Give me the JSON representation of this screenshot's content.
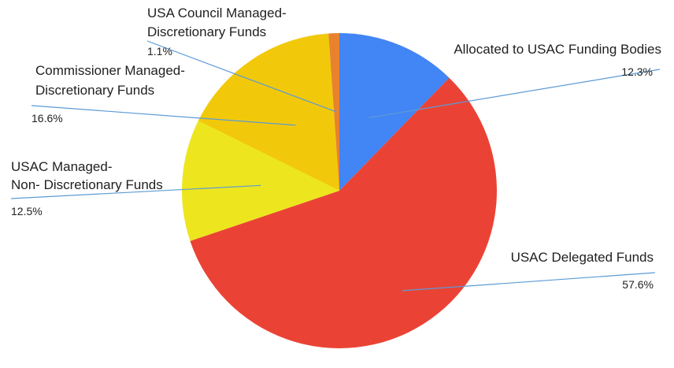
{
  "chart_data": {
    "type": "pie",
    "title": "",
    "start_angle_deg": 0,
    "direction": "clockwise",
    "slices": [
      {
        "label": "Allocated to USAC Funding Bodies",
        "value": 12.3,
        "display": "12.3%",
        "color": "#4285f4"
      },
      {
        "label": "USAC Delegated Funds",
        "value": 57.6,
        "display": "57.6%",
        "color": "#ea4335"
      },
      {
        "label_lines": [
          "USAC Managed-",
          "Non- Discretionary Funds"
        ],
        "value": 12.5,
        "display": "12.5%",
        "color": "#ede61e"
      },
      {
        "label_lines": [
          "Commissioner Managed-",
          "Discretionary Funds"
        ],
        "value": 16.6,
        "display": "16.6%",
        "color": "#f2c90a"
      },
      {
        "label_lines": [
          "USA Council Managed-",
          "Discretionary Funds"
        ],
        "value": 1.1,
        "display": "1.1%",
        "color": "#e8822f"
      }
    ],
    "leader_line_color": "#5b9bd5"
  }
}
